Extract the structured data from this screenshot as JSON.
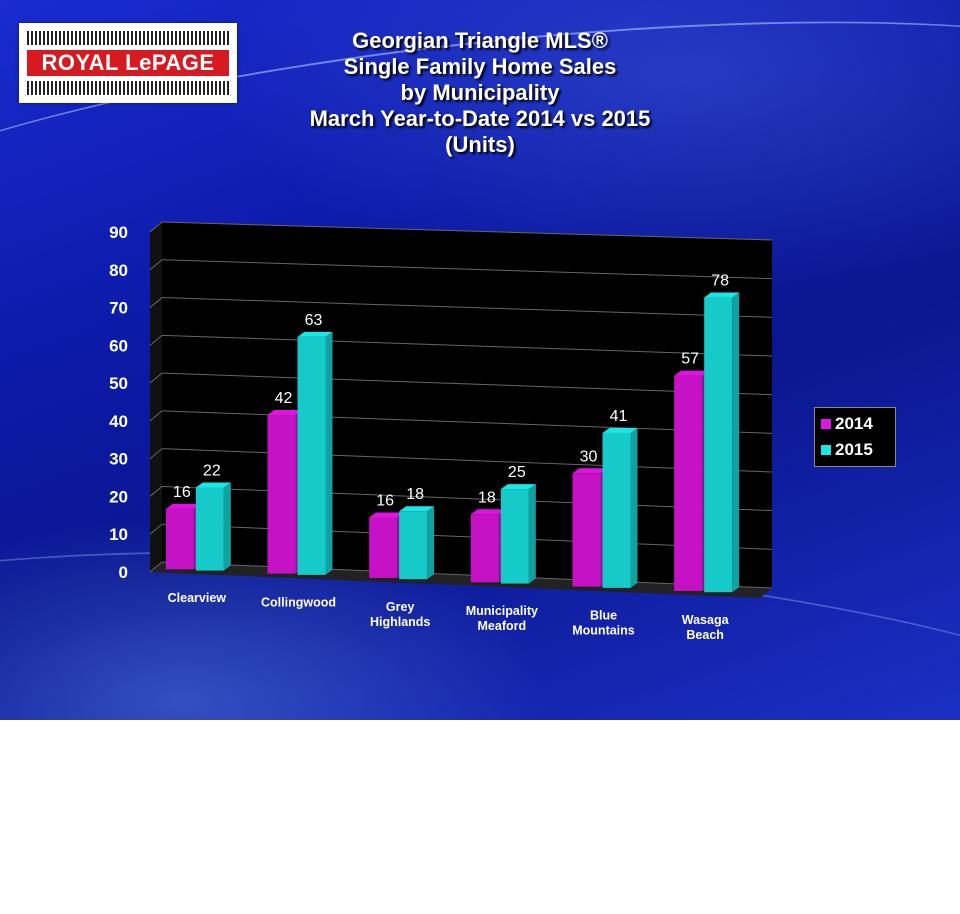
{
  "logo": {
    "text": "ROYAL LePAGE"
  },
  "title_lines": [
    "Georgian Triangle MLS®",
    "Single Family Home Sales",
    "by Municipality",
    "March Year-to-Date 2014 vs 2015",
    "(Units)"
  ],
  "colors": {
    "series_2014": "#e014e0",
    "series_2015": "#19e6e6",
    "plot_bg": "#000000"
  },
  "chart_data": {
    "type": "bar",
    "categories": [
      [
        "Clearview"
      ],
      [
        "Collingwood"
      ],
      [
        "Grey",
        "Highlands"
      ],
      [
        "Municipality",
        "Meaford"
      ],
      [
        "Blue",
        "Mountains"
      ],
      [
        "Wasaga",
        "Beach"
      ]
    ],
    "series": [
      {
        "name": "2014",
        "values": [
          16,
          42,
          16,
          18,
          30,
          57
        ]
      },
      {
        "name": "2015",
        "values": [
          22,
          63,
          18,
          25,
          41,
          78
        ]
      }
    ],
    "ylim": [
      0,
      90
    ],
    "yticks": [
      0,
      10,
      20,
      30,
      40,
      50,
      60,
      70,
      80,
      90
    ],
    "legend_position": "right",
    "grid": true
  }
}
